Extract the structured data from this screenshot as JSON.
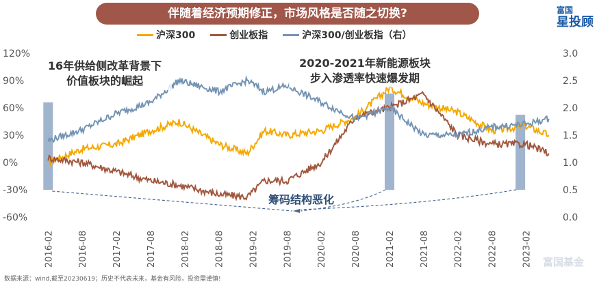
{
  "title": "伴随着经济预期修正，市场风格是否随之切换?",
  "logo": {
    "top": "富国",
    "main": "星投顾"
  },
  "source": "数据来源：wind,截至20230619；历史不代表未来，基金有风险，投资需谨慎!",
  "watermark": "富国基金",
  "colors": {
    "hs300": "#f5a800",
    "cyb": "#a0573d",
    "ratio": "#7493b3",
    "highlight": "#8fa8c4"
  },
  "chart_data": {
    "type": "line",
    "x_tick_labels": [
      "2016-02",
      "2016-08",
      "2017-02",
      "2017-08",
      "2018-02",
      "2018-08",
      "2019-02",
      "2019-08",
      "2020-02",
      "2020-08",
      "2021-02",
      "2021-08",
      "2022-02",
      "2022-08",
      "2023-02"
    ],
    "y_left": {
      "ticks": [
        "120%",
        "90%",
        "60%",
        "30%",
        "0%",
        "-30%",
        "-60%"
      ],
      "range": [
        -60,
        120
      ]
    },
    "y_right": {
      "ticks": [
        "3.0",
        "2.5",
        "2.0",
        "1.5",
        "1.0",
        "0.5",
        "0.0"
      ],
      "range": [
        0,
        3
      ]
    },
    "series": [
      {
        "name": "沪深300",
        "axis": "left",
        "x": [
          "2016-02",
          "2016-08",
          "2017-02",
          "2017-08",
          "2018-01",
          "2018-08",
          "2019-01",
          "2019-04",
          "2019-08",
          "2020-02",
          "2020-08",
          "2021-02",
          "2021-08",
          "2022-02",
          "2022-08",
          "2023-02",
          "2023-06"
        ],
        "values": [
          0,
          15,
          20,
          35,
          45,
          20,
          10,
          35,
          30,
          35,
          50,
          82,
          65,
          55,
          35,
          40,
          30
        ]
      },
      {
        "name": "创业板指",
        "axis": "left",
        "x": [
          "2016-02",
          "2016-08",
          "2017-02",
          "2017-08",
          "2018-01",
          "2018-08",
          "2019-01",
          "2019-04",
          "2019-08",
          "2020-02",
          "2020-08",
          "2021-02",
          "2021-08",
          "2022-02",
          "2022-08",
          "2023-02",
          "2023-06"
        ],
        "values": [
          5,
          0,
          -10,
          -20,
          -25,
          -35,
          -38,
          -20,
          -20,
          0,
          50,
          60,
          75,
          30,
          20,
          20,
          10
        ]
      },
      {
        "name": "沪深300/创业板指（右）",
        "axis": "right",
        "x": [
          "2016-02",
          "2016-08",
          "2017-02",
          "2017-08",
          "2018-01",
          "2018-08",
          "2019-01",
          "2019-04",
          "2019-08",
          "2020-02",
          "2020-08",
          "2021-02",
          "2021-08",
          "2022-02",
          "2022-08",
          "2023-02",
          "2023-06"
        ],
        "values": [
          1.4,
          1.6,
          1.9,
          2.1,
          2.5,
          2.3,
          2.5,
          2.3,
          2.4,
          2.1,
          1.8,
          2.0,
          1.5,
          1.5,
          1.65,
          1.7,
          1.8
        ]
      }
    ],
    "highlights": [
      {
        "from": "2016-02",
        "to": "2016-02"
      },
      {
        "from": "2021-02",
        "to": "2021-02"
      },
      {
        "from": "2023-01",
        "to": "2023-01"
      }
    ],
    "annotations": [
      {
        "text1": "16年供给侧改革背景下",
        "text2": "价值板块的崛起"
      },
      {
        "text1": "2020-2021年新能源板块",
        "text2": "步入渗透率快速爆发期"
      },
      {
        "text1": "筹码结构恶化"
      }
    ]
  }
}
